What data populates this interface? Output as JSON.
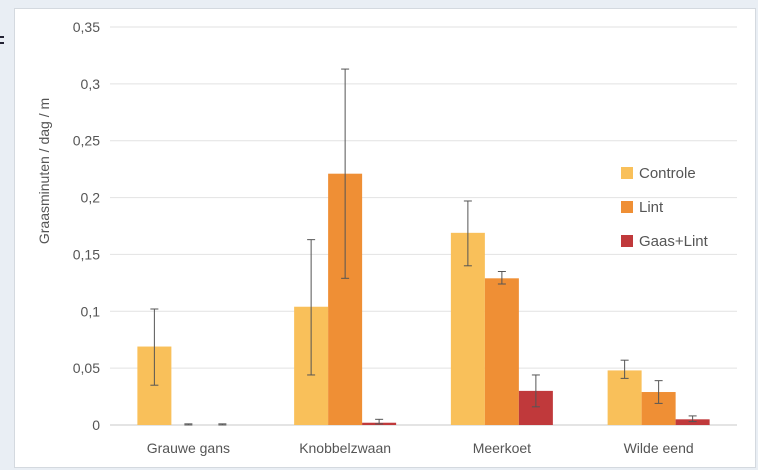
{
  "chart_data": {
    "type": "bar",
    "title": "",
    "xlabel": "",
    "ylabel": "Graasminuten / dag / m",
    "ylim": [
      0,
      0.35
    ],
    "yticks": [
      "0",
      "0,05",
      "0,1",
      "0,15",
      "0,2",
      "0,25",
      "0,3",
      "0,35"
    ],
    "ytick_values": [
      0,
      0.05,
      0.1,
      0.15,
      0.2,
      0.25,
      0.3,
      0.35
    ],
    "categories": [
      "Grauwe gans",
      "Knobbelzwaan",
      "Meerkoet",
      "Wilde eend"
    ],
    "series": [
      {
        "name": "Controle",
        "color": "#f9c05a",
        "values": [
          0.069,
          0.104,
          0.169,
          0.048
        ],
        "err_low": [
          0.035,
          0.044,
          0.14,
          0.041
        ],
        "err_high": [
          0.102,
          0.163,
          0.197,
          0.057
        ]
      },
      {
        "name": "Lint",
        "color": "#ef8f35",
        "values": [
          0,
          0.221,
          0.129,
          0.029
        ],
        "err_low": [
          0,
          0.129,
          0.124,
          0.019
        ],
        "err_high": [
          0.001,
          0.313,
          0.135,
          0.039
        ]
      },
      {
        "name": "Gaas+Lint",
        "color": "#c0393b",
        "values": [
          0,
          0.002,
          0.03,
          0.005
        ],
        "err_low": [
          0,
          0.001,
          0.016,
          0.003
        ],
        "err_high": [
          0.001,
          0.005,
          0.044,
          0.008
        ]
      }
    ],
    "grid": true,
    "error_bars": true,
    "legend_position": "right"
  }
}
